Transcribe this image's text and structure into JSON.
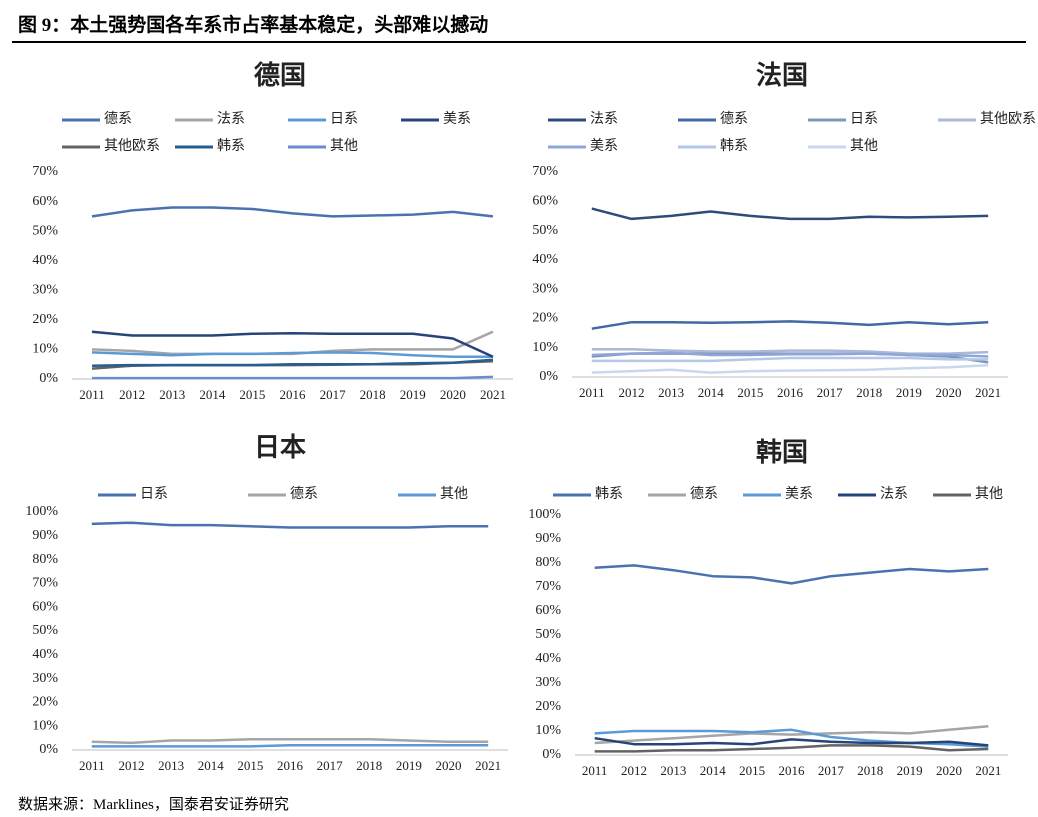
{
  "header": {
    "title": "图 9：本土强势国各车系市占率基本稳定，头部难以撼动"
  },
  "source": "数据来源：Marklines，国泰君安证券研究",
  "chart_data": [
    {
      "type": "line",
      "title": "德国",
      "categories": [
        "2011",
        "2012",
        "2013",
        "2014",
        "2015",
        "2016",
        "2017",
        "2018",
        "2019",
        "2020",
        "2021"
      ],
      "ylim": [
        0,
        70
      ],
      "yticks": [
        {
          "value": 0,
          "label": "0%"
        },
        {
          "value": 10,
          "label": "10%"
        },
        {
          "value": 20,
          "label": "20%"
        },
        {
          "value": 30,
          "label": "30%"
        },
        {
          "value": 40,
          "label": "40%"
        },
        {
          "value": 50,
          "label": "50%"
        },
        {
          "value": 60,
          "label": "60%"
        },
        {
          "value": 70,
          "label": "70%"
        }
      ],
      "series": [
        {
          "name": "德系",
          "color": "#4a72b0",
          "values": [
            55,
            57,
            58,
            58,
            57.5,
            56,
            55,
            55.3,
            55.6,
            56.5,
            55
          ]
        },
        {
          "name": "法系",
          "color": "#a5a5a5",
          "values": [
            10,
            9.5,
            8.5,
            8.5,
            8.5,
            8.5,
            9.5,
            10,
            10,
            10,
            16
          ]
        },
        {
          "name": "日系",
          "color": "#5b9bd5",
          "values": [
            9,
            8.5,
            8,
            8.5,
            8.5,
            8.8,
            9,
            8.8,
            8,
            7.5,
            7.5
          ]
        },
        {
          "name": "美系",
          "color": "#264478",
          "values": [
            16,
            14.7,
            14.7,
            14.7,
            15.3,
            15.5,
            15.3,
            15.3,
            15.3,
            13.7,
            7.5
          ]
        },
        {
          "name": "其他欧系",
          "color": "#636363",
          "values": [
            3.5,
            4.5,
            4.7,
            4.7,
            4.7,
            4.7,
            4.8,
            5,
            5,
            5.5,
            6
          ]
        },
        {
          "name": "韩系",
          "color": "#255e91",
          "values": [
            4.5,
            4.7,
            4.7,
            4.7,
            4.7,
            5,
            5,
            5,
            5.3,
            5.5,
            6.5
          ]
        },
        {
          "name": "其他",
          "color": "#698ed0",
          "values": [
            0.3,
            0.3,
            0.3,
            0.3,
            0.3,
            0.3,
            0.3,
            0.3,
            0.3,
            0.3,
            0.7
          ]
        }
      ]
    },
    {
      "type": "line",
      "title": "法国",
      "categories": [
        "2011",
        "2012",
        "2013",
        "2014",
        "2015",
        "2016",
        "2017",
        "2018",
        "2019",
        "2020",
        "2021"
      ],
      "ylim": [
        0,
        70
      ],
      "yticks": [
        {
          "value": 0,
          "label": "0%"
        },
        {
          "value": 10,
          "label": "10%"
        },
        {
          "value": 20,
          "label": "20%"
        },
        {
          "value": 30,
          "label": "30%"
        },
        {
          "value": 40,
          "label": "40%"
        },
        {
          "value": 50,
          "label": "50%"
        },
        {
          "value": 60,
          "label": "60%"
        },
        {
          "value": 70,
          "label": "70%"
        }
      ],
      "series": [
        {
          "name": "法系",
          "color": "#2f4b7c",
          "values": [
            57.5,
            54,
            55,
            56.5,
            55,
            54,
            54,
            54.7,
            54.5,
            54.7,
            55
          ]
        },
        {
          "name": "德系",
          "color": "#4169a8",
          "values": [
            16.5,
            18.7,
            18.7,
            18.5,
            18.7,
            19,
            18.5,
            17.8,
            18.7,
            18,
            18.7
          ]
        },
        {
          "name": "日系",
          "color": "#7f96b8",
          "values": [
            7,
            8,
            8,
            8,
            8,
            8,
            8,
            8,
            7.5,
            7,
            5
          ]
        },
        {
          "name": "其他欧系",
          "color": "#a9b9d6",
          "values": [
            9.5,
            9.5,
            9,
            8.7,
            8.7,
            9,
            9,
            8.7,
            8,
            8,
            8.5
          ]
        },
        {
          "name": "美系",
          "color": "#8fa5d8",
          "values": [
            7.5,
            8,
            8.3,
            7.5,
            7.5,
            7.8,
            7.8,
            8,
            7.5,
            7.5,
            7
          ]
        },
        {
          "name": "韩系",
          "color": "#b4c7e7",
          "values": [
            5.5,
            5.5,
            5.5,
            5.5,
            6,
            6.5,
            6.5,
            6.5,
            6.5,
            6,
            6
          ]
        },
        {
          "name": "其他",
          "color": "#c9d7ee",
          "values": [
            1.5,
            2,
            2.5,
            1.5,
            2,
            2.2,
            2.3,
            2.5,
            3,
            3.3,
            4
          ]
        }
      ]
    },
    {
      "type": "line",
      "title": "日本",
      "categories": [
        "2011",
        "2012",
        "2013",
        "2014",
        "2015",
        "2016",
        "2017",
        "2018",
        "2019",
        "2020",
        "2021"
      ],
      "ylim": [
        0,
        100
      ],
      "yticks": [
        {
          "value": 0,
          "label": "0%"
        },
        {
          "value": 10,
          "label": "10%"
        },
        {
          "value": 20,
          "label": "20%"
        },
        {
          "value": 30,
          "label": "30%"
        },
        {
          "value": 40,
          "label": "40%"
        },
        {
          "value": 50,
          "label": "50%"
        },
        {
          "value": 60,
          "label": "60%"
        },
        {
          "value": 70,
          "label": "70%"
        },
        {
          "value": 80,
          "label": "80%"
        },
        {
          "value": 90,
          "label": "90%"
        },
        {
          "value": 100,
          "label": "100%"
        }
      ],
      "series": [
        {
          "name": "日系",
          "color": "#4a72b0",
          "values": [
            95,
            95.5,
            94.5,
            94.5,
            94,
            93.5,
            93.5,
            93.5,
            93.5,
            94,
            94
          ]
        },
        {
          "name": "德系",
          "color": "#a5a5a5",
          "values": [
            3.5,
            3,
            4,
            4,
            4.5,
            4.5,
            4.5,
            4.5,
            4,
            3.5,
            3.5
          ]
        },
        {
          "name": "其他",
          "color": "#5b9bd5",
          "values": [
            1.5,
            1.5,
            1.5,
            1.5,
            1.5,
            2,
            2,
            2,
            2,
            2,
            2
          ]
        }
      ]
    },
    {
      "type": "line",
      "title": "韩国",
      "categories": [
        "2011",
        "2012",
        "2013",
        "2014",
        "2015",
        "2016",
        "2017",
        "2018",
        "2019",
        "2020",
        "2021"
      ],
      "ylim": [
        0,
        100
      ],
      "yticks": [
        {
          "value": 0,
          "label": "0%"
        },
        {
          "value": 10,
          "label": "10%"
        },
        {
          "value": 20,
          "label": "20%"
        },
        {
          "value": 30,
          "label": "30%"
        },
        {
          "value": 40,
          "label": "40%"
        },
        {
          "value": 50,
          "label": "50%"
        },
        {
          "value": 60,
          "label": "60%"
        },
        {
          "value": 70,
          "label": "70%"
        },
        {
          "value": 80,
          "label": "80%"
        },
        {
          "value": 90,
          "label": "90%"
        },
        {
          "value": 100,
          "label": "100%"
        }
      ],
      "series": [
        {
          "name": "韩系",
          "color": "#4a72b0",
          "values": [
            78,
            79,
            77,
            74.5,
            74,
            71.5,
            74.5,
            76,
            77.5,
            76.5,
            77.5
          ]
        },
        {
          "name": "德系",
          "color": "#a5a5a5",
          "values": [
            5,
            6,
            7,
            8,
            9,
            8.5,
            9,
            9.5,
            9,
            10.5,
            12
          ]
        },
        {
          "name": "美系",
          "color": "#5b9bd5",
          "values": [
            9,
            10,
            10,
            10,
            9.5,
            10.5,
            7.5,
            6,
            5,
            4.5,
            3.5
          ]
        },
        {
          "name": "法系",
          "color": "#264478",
          "values": [
            7,
            4.5,
            4.5,
            5,
            4.5,
            6.5,
            5.5,
            5,
            5,
            5.5,
            4
          ]
        },
        {
          "name": "其他",
          "color": "#636363",
          "values": [
            1.5,
            1.5,
            2,
            2,
            2.5,
            3,
            4,
            4,
            3.5,
            2,
            2.5
          ]
        }
      ]
    }
  ]
}
